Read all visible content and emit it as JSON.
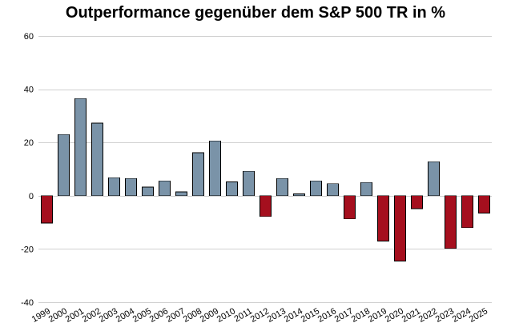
{
  "chart_data": {
    "type": "bar",
    "title": "Outperformance gegenüber dem S&P 500 TR in %",
    "xlabel": "",
    "ylabel": "",
    "ylim": [
      -40,
      60
    ],
    "yticks": [
      60,
      40,
      20,
      0,
      -20,
      -40
    ],
    "grid": true,
    "legend": "none",
    "categories": [
      "1999",
      "2000",
      "2001",
      "2002",
      "2003",
      "2004",
      "2005",
      "2006",
      "2007",
      "2008",
      "2009",
      "2010",
      "2011",
      "2012",
      "2013",
      "2014",
      "2015",
      "2016",
      "2017",
      "2018",
      "2019",
      "2020",
      "2021",
      "2022",
      "2023",
      "2024",
      "2025"
    ],
    "values": [
      -10.3,
      23.0,
      36.5,
      27.3,
      6.8,
      6.5,
      3.2,
      5.6,
      1.4,
      16.2,
      20.6,
      5.2,
      9.2,
      -7.8,
      6.5,
      0.7,
      5.6,
      4.5,
      -8.7,
      5.0,
      -17.0,
      -24.5,
      -4.9,
      12.8,
      -19.8,
      -12.0,
      -6.5
    ],
    "colors": {
      "positive": "#7a93a8",
      "negative": "#a50f1e"
    }
  }
}
